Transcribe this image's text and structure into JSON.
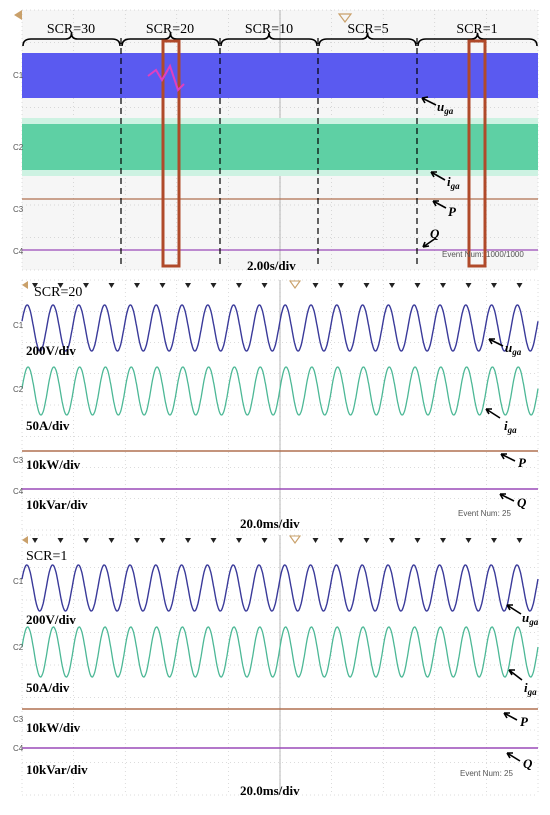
{
  "colors": {
    "u": "#3a3a9a",
    "i": "#4db896",
    "i_light": "#c8f0e0",
    "band_u": "#5a5af0",
    "p": "#b07050",
    "q": "#9a4ab8",
    "grid": "#b8b8b8",
    "highlight": "#b04a2a",
    "trigger": "#c9a06a"
  },
  "chart_data": [
    {
      "type": "line",
      "panel": "top",
      "segments": [
        "SCR=30",
        "SCR=20",
        "SCR=10",
        "SCR=5",
        "SCR=1"
      ],
      "timebase": "2.00s/div",
      "channel_tags": [
        "C1",
        "C2",
        "C3",
        "C4"
      ],
      "event_num": "Event Num: 1000/1000",
      "series": [
        {
          "name": "u",
          "sub": "ga"
        },
        {
          "name": "i",
          "sub": "ga"
        },
        {
          "name": "P",
          "sub": ""
        },
        {
          "name": "Q",
          "sub": ""
        }
      ]
    },
    {
      "type": "line",
      "panel": "middle",
      "title": "SCR=20",
      "timebase": "20.0ms/div",
      "cycles": 20,
      "scales": [
        "200V/div",
        "50A/div",
        "10kW/div",
        "10kVar/div"
      ],
      "channel_tags": [
        "C1",
        "C2",
        "C3",
        "C4"
      ],
      "event_num": "Event Num: 25",
      "series": [
        {
          "name": "u",
          "sub": "ga"
        },
        {
          "name": "i",
          "sub": "ga"
        },
        {
          "name": "P",
          "sub": ""
        },
        {
          "name": "Q",
          "sub": ""
        }
      ]
    },
    {
      "type": "line",
      "panel": "bottom",
      "title": "SCR=1",
      "timebase": "20.0ms/div",
      "cycles": 20,
      "scales": [
        "200V/div",
        "50A/div",
        "10kW/div",
        "10kVar/div"
      ],
      "channel_tags": [
        "C1",
        "C2",
        "C3",
        "C4"
      ],
      "event_num": "Event Num: 25",
      "series": [
        {
          "name": "u",
          "sub": "ga"
        },
        {
          "name": "i",
          "sub": "ga"
        },
        {
          "name": "P",
          "sub": ""
        },
        {
          "name": "Q",
          "sub": ""
        }
      ]
    }
  ]
}
